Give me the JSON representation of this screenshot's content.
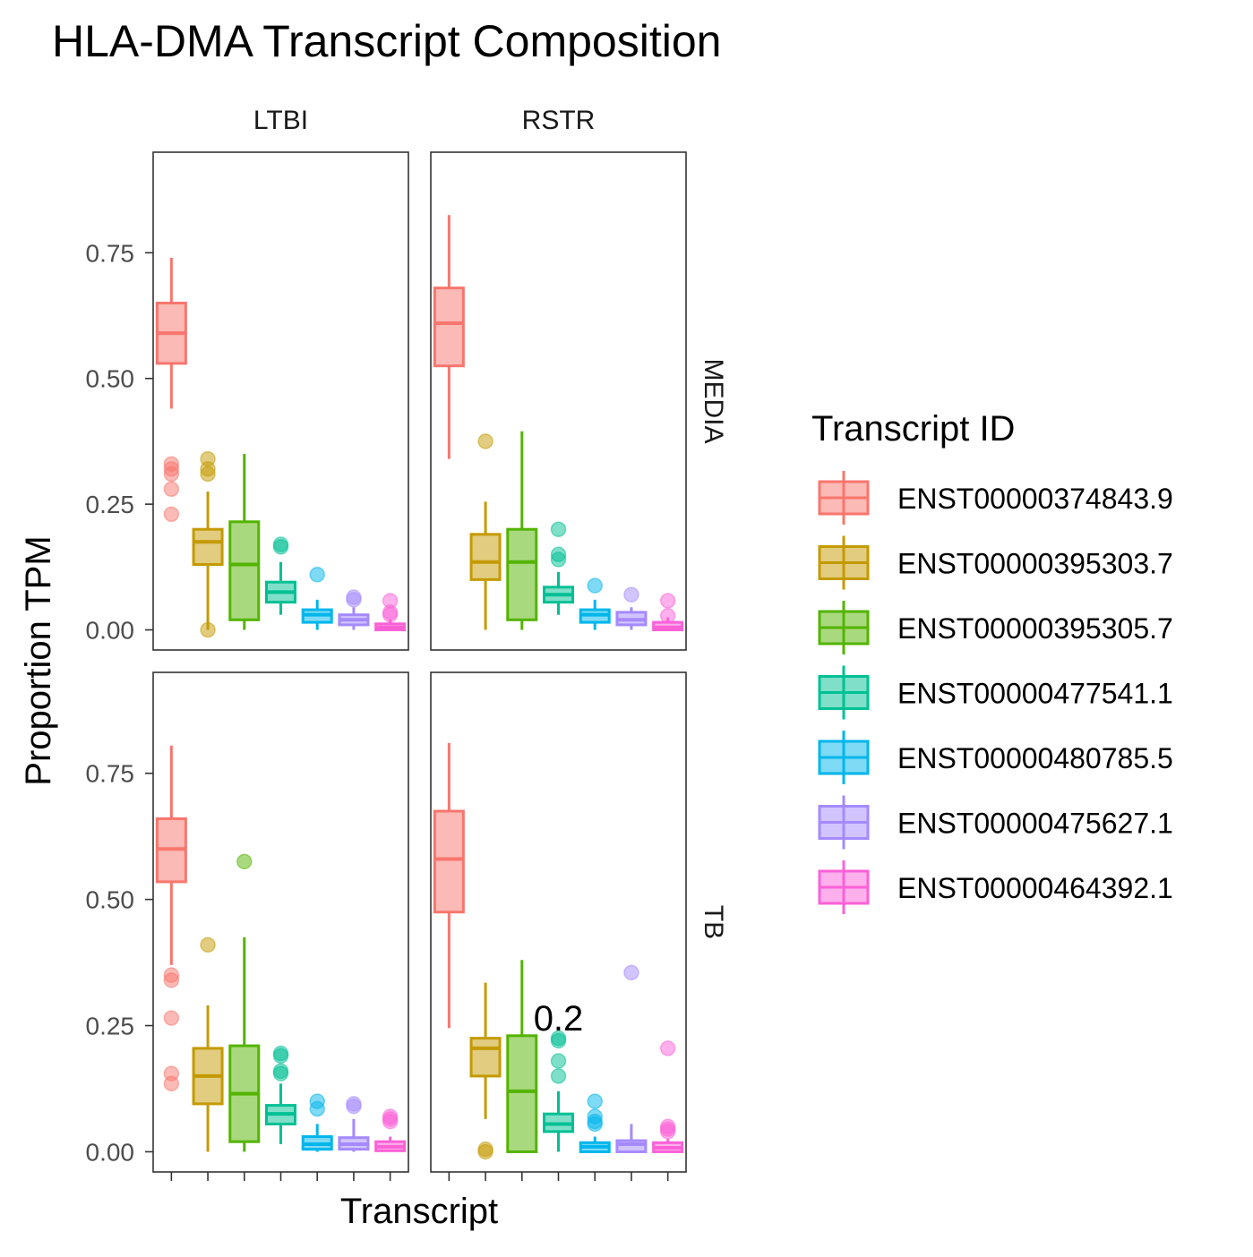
{
  "chart_data": {
    "type": "box",
    "title": "HLA-DMA Transcript Composition",
    "xlabel": "Transcript",
    "ylabel": "Proportion TPM",
    "ylim": [
      -0.04,
      0.95
    ],
    "y_ticks": [
      "0.00",
      "0.25",
      "0.50",
      "0.75"
    ],
    "y_tick_values": [
      0,
      0.25,
      0.5,
      0.75
    ],
    "facet_columns": [
      "LTBI",
      "RSTR"
    ],
    "facet_rows": [
      "MEDIA",
      "TB"
    ],
    "legend": {
      "title": "Transcript ID",
      "position": "right",
      "items": [
        {
          "id": "ENST00000374843.9",
          "color": "#F8766D"
        },
        {
          "id": "ENST00000395303.7",
          "color": "#C49A00"
        },
        {
          "id": "ENST00000395305.7",
          "color": "#53B400"
        },
        {
          "id": "ENST00000477541.1",
          "color": "#00C094"
        },
        {
          "id": "ENST00000480785.5",
          "color": "#00B6EB"
        },
        {
          "id": "ENST00000475627.1",
          "color": "#A58AFF"
        },
        {
          "id": "ENST00000464392.1",
          "color": "#FB61D7"
        }
      ]
    },
    "panels": [
      {
        "col": "LTBI",
        "row": "MEDIA",
        "boxes": [
          {
            "q1": 0.53,
            "median": 0.59,
            "q3": 0.65,
            "wlo": 0.44,
            "whi": 0.74,
            "outliers": [
              0.33,
              0.32,
              0.31,
              0.28,
              0.23
            ]
          },
          {
            "q1": 0.13,
            "median": 0.175,
            "q3": 0.2,
            "wlo": 0.0,
            "whi": 0.275,
            "outliers": [
              0.34,
              0.32,
              0.31,
              0.0
            ]
          },
          {
            "q1": 0.02,
            "median": 0.13,
            "q3": 0.215,
            "wlo": 0.0,
            "whi": 0.35,
            "outliers": []
          },
          {
            "q1": 0.055,
            "median": 0.075,
            "q3": 0.095,
            "wlo": 0.03,
            "whi": 0.135,
            "outliers": [
              0.17,
              0.165
            ]
          },
          {
            "q1": 0.015,
            "median": 0.03,
            "q3": 0.04,
            "wlo": 0.0,
            "whi": 0.06,
            "outliers": [
              0.11
            ]
          },
          {
            "q1": 0.01,
            "median": 0.02,
            "q3": 0.03,
            "wlo": 0.0,
            "whi": 0.045,
            "outliers": [
              0.065,
              0.06
            ]
          },
          {
            "q1": 0.0,
            "median": 0.005,
            "q3": 0.012,
            "wlo": 0.0,
            "whi": 0.02,
            "outliers": [
              0.058,
              0.035,
              0.03
            ]
          }
        ]
      },
      {
        "col": "RSTR",
        "row": "MEDIA",
        "boxes": [
          {
            "q1": 0.525,
            "median": 0.61,
            "q3": 0.68,
            "wlo": 0.34,
            "whi": 0.825,
            "outliers": []
          },
          {
            "q1": 0.1,
            "median": 0.135,
            "q3": 0.19,
            "wlo": 0.0,
            "whi": 0.255,
            "outliers": [
              0.375
            ]
          },
          {
            "q1": 0.02,
            "median": 0.135,
            "q3": 0.2,
            "wlo": 0.0,
            "whi": 0.395,
            "outliers": []
          },
          {
            "q1": 0.055,
            "median": 0.07,
            "q3": 0.085,
            "wlo": 0.03,
            "whi": 0.115,
            "outliers": [
              0.2,
              0.15,
              0.14
            ]
          },
          {
            "q1": 0.015,
            "median": 0.03,
            "q3": 0.04,
            "wlo": 0.0,
            "whi": 0.06,
            "outliers": [
              0.088
            ]
          },
          {
            "q1": 0.01,
            "median": 0.02,
            "q3": 0.035,
            "wlo": 0.0,
            "whi": 0.045,
            "outliers": [
              0.07
            ]
          },
          {
            "q1": 0.0,
            "median": 0.005,
            "q3": 0.015,
            "wlo": 0.0,
            "whi": 0.025,
            "outliers": [
              0.058,
              0.028
            ]
          }
        ]
      },
      {
        "col": "LTBI",
        "row": "TB",
        "boxes": [
          {
            "q1": 0.535,
            "median": 0.6,
            "q3": 0.66,
            "wlo": 0.37,
            "whi": 0.805,
            "outliers": [
              0.35,
              0.34,
              0.265,
              0.155,
              0.135
            ]
          },
          {
            "q1": 0.095,
            "median": 0.15,
            "q3": 0.205,
            "wlo": 0.0,
            "whi": 0.29,
            "outliers": [
              0.41
            ]
          },
          {
            "q1": 0.02,
            "median": 0.115,
            "q3": 0.21,
            "wlo": 0.0,
            "whi": 0.425,
            "outliers": [
              0.575
            ]
          },
          {
            "q1": 0.055,
            "median": 0.075,
            "q3": 0.092,
            "wlo": 0.015,
            "whi": 0.135,
            "outliers": [
              0.195,
              0.19,
              0.16,
              0.155
            ]
          },
          {
            "q1": 0.005,
            "median": 0.015,
            "q3": 0.03,
            "wlo": 0.0,
            "whi": 0.055,
            "outliers": [
              0.1,
              0.085
            ]
          },
          {
            "q1": 0.005,
            "median": 0.015,
            "q3": 0.028,
            "wlo": 0.0,
            "whi": 0.065,
            "outliers": [
              0.095,
              0.09
            ]
          },
          {
            "q1": 0.002,
            "median": 0.01,
            "q3": 0.02,
            "wlo": 0.0,
            "whi": 0.03,
            "outliers": [
              0.07,
              0.065,
              0.06
            ]
          }
        ]
      },
      {
        "col": "RSTR",
        "row": "TB",
        "boxes": [
          {
            "q1": 0.475,
            "median": 0.58,
            "q3": 0.675,
            "wlo": 0.245,
            "whi": 0.81,
            "outliers": []
          },
          {
            "q1": 0.15,
            "median": 0.205,
            "q3": 0.225,
            "wlo": 0.065,
            "whi": 0.335,
            "outliers": [
              0.005,
              0.0
            ]
          },
          {
            "q1": 0.0,
            "median": 0.12,
            "q3": 0.23,
            "wlo": 0.0,
            "whi": 0.38,
            "outliers": []
          },
          {
            "q1": 0.04,
            "median": 0.055,
            "q3": 0.075,
            "wlo": 0.0,
            "whi": 0.12,
            "outliers": [
              0.225,
              0.22,
              0.18,
              0.15
            ]
          },
          {
            "q1": 0.0,
            "median": 0.01,
            "q3": 0.018,
            "wlo": 0.0,
            "whi": 0.03,
            "outliers": [
              0.1,
              0.07,
              0.06,
              0.055
            ]
          },
          {
            "q1": 0.0,
            "median": 0.015,
            "q3": 0.022,
            "wlo": 0.0,
            "whi": 0.055,
            "outliers": [
              0.355
            ]
          },
          {
            "q1": 0.0,
            "median": 0.008,
            "q3": 0.018,
            "wlo": 0.0,
            "whi": 0.025,
            "outliers": [
              0.205,
              0.05,
              0.045,
              0.04
            ]
          }
        ]
      }
    ],
    "annotations": [
      {
        "text": "0.2",
        "col": "RSTR",
        "row": "TB",
        "x_index": 3,
        "y": 0.24
      }
    ]
  }
}
